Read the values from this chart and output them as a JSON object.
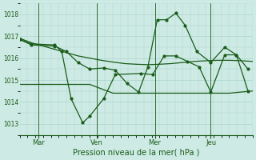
{
  "xlabel": "Pression niveau de la mer( hPa )",
  "bg_color": "#ceeae4",
  "grid_color": "#aad4cc",
  "line_color": "#1a5c1a",
  "tick_label_color": "#1a5c1a",
  "xlabel_color": "#1a5c1a",
  "ylim": [
    1012.5,
    1018.5
  ],
  "yticks": [
    1013,
    1014,
    1015,
    1016,
    1017,
    1018
  ],
  "xlim": [
    0,
    100
  ],
  "day_positions": [
    8,
    33,
    58,
    82
  ],
  "day_labels": [
    "Mar",
    "Ven",
    "Mer",
    "Jeu"
  ],
  "vline_positions": [
    8,
    33,
    58,
    82
  ],
  "series_smooth_x": [
    0,
    5,
    10,
    15,
    20,
    25,
    30,
    35,
    40,
    45,
    50,
    55,
    60,
    65,
    70,
    75,
    80,
    85,
    90,
    95,
    100
  ],
  "series_smooth_y": [
    1016.9,
    1016.7,
    1016.55,
    1016.4,
    1016.25,
    1016.1,
    1016.0,
    1015.9,
    1015.82,
    1015.75,
    1015.72,
    1015.7,
    1015.72,
    1015.75,
    1015.8,
    1015.85,
    1015.88,
    1015.9,
    1015.9,
    1015.88,
    1015.85
  ],
  "series_flat_x": [
    0,
    10,
    20,
    30,
    40,
    50,
    60,
    70,
    80,
    90,
    100
  ],
  "series_flat_y": [
    1014.8,
    1014.8,
    1014.8,
    1014.8,
    1014.4,
    1014.4,
    1014.4,
    1014.4,
    1014.4,
    1014.4,
    1014.5
  ],
  "series_spiky_x": [
    0,
    5,
    15,
    20,
    25,
    30,
    36,
    41,
    46,
    51,
    55,
    59,
    63,
    67,
    71,
    76,
    82,
    88,
    93,
    98
  ],
  "series_spiky_y": [
    1016.85,
    1016.6,
    1016.55,
    1016.3,
    1015.8,
    1015.5,
    1015.55,
    1015.45,
    1014.85,
    1014.45,
    1015.6,
    1017.75,
    1017.75,
    1018.05,
    1017.5,
    1016.3,
    1015.8,
    1016.5,
    1016.15,
    1015.5
  ],
  "series_deep_x": [
    0,
    5,
    15,
    18,
    22,
    27,
    30,
    36,
    41,
    52,
    57,
    62,
    67,
    72,
    77,
    82,
    88,
    93,
    98
  ],
  "series_deep_y": [
    1016.85,
    1016.65,
    1016.6,
    1016.3,
    1014.15,
    1013.05,
    1013.35,
    1014.15,
    1015.25,
    1015.3,
    1015.25,
    1016.1,
    1016.1,
    1015.85,
    1015.6,
    1014.45,
    1016.15,
    1016.15,
    1014.5
  ]
}
